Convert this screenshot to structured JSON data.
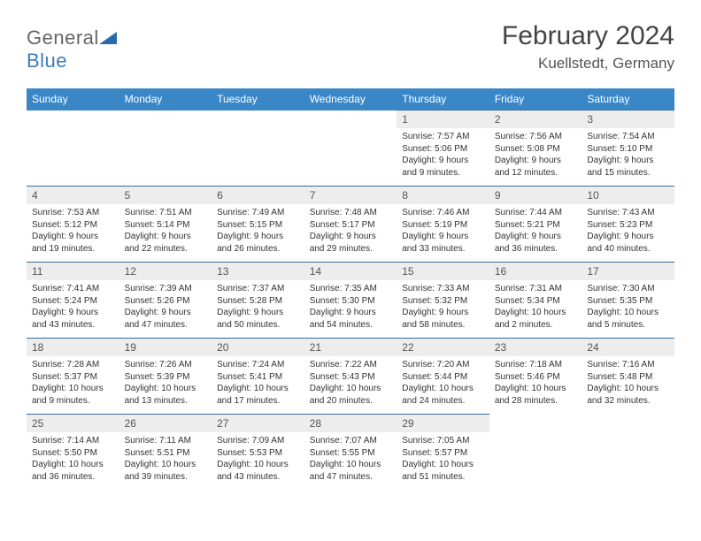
{
  "logo": {
    "text1": "General",
    "text2": "Blue"
  },
  "title": "February 2024",
  "location": "Kuellstedt, Germany",
  "header_bg": "#3a87c8",
  "border_color": "#3a6a9a",
  "daynum_bg": "#ededed",
  "weekdays": [
    "Sunday",
    "Monday",
    "Tuesday",
    "Wednesday",
    "Thursday",
    "Friday",
    "Saturday"
  ],
  "weeks": [
    [
      null,
      null,
      null,
      null,
      {
        "n": "1",
        "sr": "7:57 AM",
        "ss": "5:06 PM",
        "dl": "9 hours and 9 minutes."
      },
      {
        "n": "2",
        "sr": "7:56 AM",
        "ss": "5:08 PM",
        "dl": "9 hours and 12 minutes."
      },
      {
        "n": "3",
        "sr": "7:54 AM",
        "ss": "5:10 PM",
        "dl": "9 hours and 15 minutes."
      }
    ],
    [
      {
        "n": "4",
        "sr": "7:53 AM",
        "ss": "5:12 PM",
        "dl": "9 hours and 19 minutes."
      },
      {
        "n": "5",
        "sr": "7:51 AM",
        "ss": "5:14 PM",
        "dl": "9 hours and 22 minutes."
      },
      {
        "n": "6",
        "sr": "7:49 AM",
        "ss": "5:15 PM",
        "dl": "9 hours and 26 minutes."
      },
      {
        "n": "7",
        "sr": "7:48 AM",
        "ss": "5:17 PM",
        "dl": "9 hours and 29 minutes."
      },
      {
        "n": "8",
        "sr": "7:46 AM",
        "ss": "5:19 PM",
        "dl": "9 hours and 33 minutes."
      },
      {
        "n": "9",
        "sr": "7:44 AM",
        "ss": "5:21 PM",
        "dl": "9 hours and 36 minutes."
      },
      {
        "n": "10",
        "sr": "7:43 AM",
        "ss": "5:23 PM",
        "dl": "9 hours and 40 minutes."
      }
    ],
    [
      {
        "n": "11",
        "sr": "7:41 AM",
        "ss": "5:24 PM",
        "dl": "9 hours and 43 minutes."
      },
      {
        "n": "12",
        "sr": "7:39 AM",
        "ss": "5:26 PM",
        "dl": "9 hours and 47 minutes."
      },
      {
        "n": "13",
        "sr": "7:37 AM",
        "ss": "5:28 PM",
        "dl": "9 hours and 50 minutes."
      },
      {
        "n": "14",
        "sr": "7:35 AM",
        "ss": "5:30 PM",
        "dl": "9 hours and 54 minutes."
      },
      {
        "n": "15",
        "sr": "7:33 AM",
        "ss": "5:32 PM",
        "dl": "9 hours and 58 minutes."
      },
      {
        "n": "16",
        "sr": "7:31 AM",
        "ss": "5:34 PM",
        "dl": "10 hours and 2 minutes."
      },
      {
        "n": "17",
        "sr": "7:30 AM",
        "ss": "5:35 PM",
        "dl": "10 hours and 5 minutes."
      }
    ],
    [
      {
        "n": "18",
        "sr": "7:28 AM",
        "ss": "5:37 PM",
        "dl": "10 hours and 9 minutes."
      },
      {
        "n": "19",
        "sr": "7:26 AM",
        "ss": "5:39 PM",
        "dl": "10 hours and 13 minutes."
      },
      {
        "n": "20",
        "sr": "7:24 AM",
        "ss": "5:41 PM",
        "dl": "10 hours and 17 minutes."
      },
      {
        "n": "21",
        "sr": "7:22 AM",
        "ss": "5:43 PM",
        "dl": "10 hours and 20 minutes."
      },
      {
        "n": "22",
        "sr": "7:20 AM",
        "ss": "5:44 PM",
        "dl": "10 hours and 24 minutes."
      },
      {
        "n": "23",
        "sr": "7:18 AM",
        "ss": "5:46 PM",
        "dl": "10 hours and 28 minutes."
      },
      {
        "n": "24",
        "sr": "7:16 AM",
        "ss": "5:48 PM",
        "dl": "10 hours and 32 minutes."
      }
    ],
    [
      {
        "n": "25",
        "sr": "7:14 AM",
        "ss": "5:50 PM",
        "dl": "10 hours and 36 minutes."
      },
      {
        "n": "26",
        "sr": "7:11 AM",
        "ss": "5:51 PM",
        "dl": "10 hours and 39 minutes."
      },
      {
        "n": "27",
        "sr": "7:09 AM",
        "ss": "5:53 PM",
        "dl": "10 hours and 43 minutes."
      },
      {
        "n": "28",
        "sr": "7:07 AM",
        "ss": "5:55 PM",
        "dl": "10 hours and 47 minutes."
      },
      {
        "n": "29",
        "sr": "7:05 AM",
        "ss": "5:57 PM",
        "dl": "10 hours and 51 minutes."
      },
      null,
      null
    ]
  ],
  "labels": {
    "sunrise": "Sunrise:",
    "sunset": "Sunset:",
    "daylight": "Daylight:"
  }
}
